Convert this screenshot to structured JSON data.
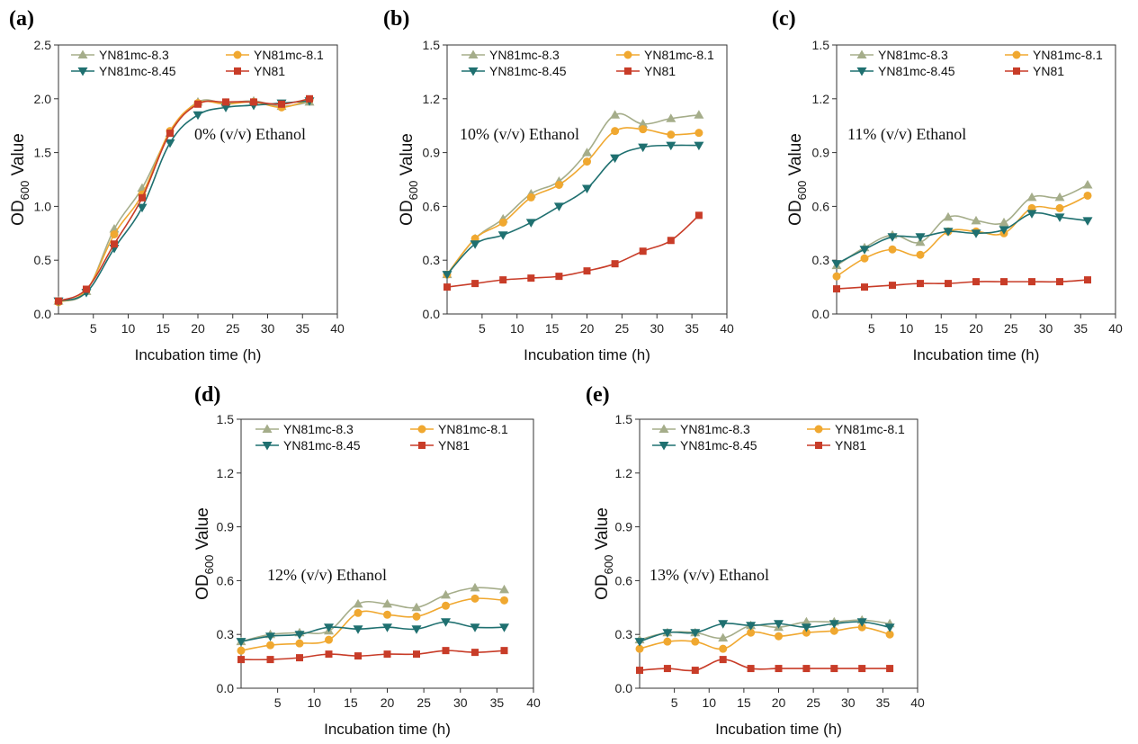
{
  "figure": {
    "colors": {
      "YN81mc-8.3": "#a5ad8a",
      "YN81mc-8.1": "#f0a830",
      "YN81mc-8.45": "#1f7070",
      "YN81": "#c83c28"
    },
    "markers": {
      "YN81mc-8.3": "triangle-up",
      "YN81mc-8.1": "circle",
      "YN81mc-8.45": "triangle-down",
      "YN81": "square"
    }
  },
  "chart_data": [
    {
      "type": "line",
      "panel": "(a)",
      "title": "",
      "annotation": "0% (v/v) Ethanol",
      "xlabel": "Incubation time (h)",
      "ylabel": {
        "main": "OD",
        "sub": "600",
        "rest": " Value"
      },
      "xlim": [
        0,
        40
      ],
      "ylim": [
        0,
        2.5
      ],
      "xticks": [
        5,
        10,
        15,
        20,
        25,
        30,
        35,
        40
      ],
      "yticks": [
        0.0,
        0.5,
        1.0,
        1.5,
        2.0,
        2.5
      ],
      "ytick_labels": [
        "0.0",
        "0.5",
        "1.0",
        "1.5",
        "2.0",
        "2.5"
      ],
      "legend_position": "top-left",
      "x": [
        0,
        4,
        8,
        12,
        16,
        20,
        24,
        28,
        32,
        36
      ],
      "series": [
        {
          "name": "YN81mc-8.3",
          "values": [
            0.12,
            0.21,
            0.79,
            1.17,
            1.68,
            1.97,
            1.96,
            1.98,
            1.93,
            1.97
          ]
        },
        {
          "name": "YN81mc-8.1",
          "values": [
            0.11,
            0.22,
            0.74,
            1.11,
            1.7,
            1.96,
            1.95,
            1.97,
            1.92,
            1.99
          ]
        },
        {
          "name": "YN81mc-8.45",
          "values": [
            0.12,
            0.2,
            0.61,
            0.99,
            1.59,
            1.85,
            1.92,
            1.94,
            1.96,
            1.98
          ]
        },
        {
          "name": "YN81",
          "values": [
            0.12,
            0.23,
            0.65,
            1.08,
            1.68,
            1.95,
            1.97,
            1.97,
            1.95,
            2.0
          ]
        }
      ]
    },
    {
      "type": "line",
      "panel": "(b)",
      "title": "",
      "annotation": "10% (v/v) Ethanol",
      "xlabel": "Incubation time (h)",
      "ylabel": {
        "main": "OD",
        "sub": "600",
        "rest": " Value"
      },
      "xlim": [
        0,
        40
      ],
      "ylim": [
        0,
        1.5
      ],
      "xticks": [
        5,
        10,
        15,
        20,
        25,
        30,
        35,
        40
      ],
      "yticks": [
        0.0,
        0.3,
        0.6,
        0.9,
        1.2,
        1.5
      ],
      "ytick_labels": [
        "0.0",
        "0.3",
        "0.6",
        "0.9",
        "1.2",
        "1.5"
      ],
      "legend_position": "top-left",
      "x": [
        0,
        4,
        8,
        12,
        16,
        20,
        24,
        28,
        32,
        36
      ],
      "series": [
        {
          "name": "YN81mc-8.3",
          "values": [
            0.22,
            0.42,
            0.53,
            0.67,
            0.74,
            0.9,
            1.11,
            1.06,
            1.09,
            1.11
          ]
        },
        {
          "name": "YN81mc-8.1",
          "values": [
            0.22,
            0.42,
            0.51,
            0.65,
            0.72,
            0.85,
            1.02,
            1.03,
            1.0,
            1.01
          ]
        },
        {
          "name": "YN81mc-8.45",
          "values": [
            0.22,
            0.39,
            0.44,
            0.51,
            0.6,
            0.7,
            0.87,
            0.93,
            0.94,
            0.94
          ]
        },
        {
          "name": "YN81",
          "values": [
            0.15,
            0.17,
            0.19,
            0.2,
            0.21,
            0.24,
            0.28,
            0.35,
            0.41,
            0.55
          ]
        }
      ]
    },
    {
      "type": "line",
      "panel": "(c)",
      "title": "",
      "annotation": "11% (v/v) Ethanol",
      "xlabel": "Incubation time (h)",
      "ylabel": {
        "main": "OD",
        "sub": "600",
        "rest": " Value"
      },
      "xlim": [
        0,
        40
      ],
      "ylim": [
        0,
        1.5
      ],
      "xticks": [
        5,
        10,
        15,
        20,
        25,
        30,
        35,
        40
      ],
      "yticks": [
        0.0,
        0.3,
        0.6,
        0.9,
        1.2,
        1.5
      ],
      "ytick_labels": [
        "0.0",
        "0.3",
        "0.6",
        "0.9",
        "1.2",
        "1.5"
      ],
      "legend_position": "top-left",
      "x": [
        0,
        4,
        8,
        12,
        16,
        20,
        24,
        28,
        32,
        36
      ],
      "series": [
        {
          "name": "YN81mc-8.3",
          "values": [
            0.27,
            0.37,
            0.44,
            0.4,
            0.54,
            0.52,
            0.51,
            0.65,
            0.65,
            0.72
          ]
        },
        {
          "name": "YN81mc-8.1",
          "values": [
            0.21,
            0.31,
            0.36,
            0.33,
            0.46,
            0.46,
            0.45,
            0.59,
            0.59,
            0.66
          ]
        },
        {
          "name": "YN81mc-8.45",
          "values": [
            0.28,
            0.36,
            0.43,
            0.43,
            0.46,
            0.45,
            0.47,
            0.56,
            0.54,
            0.52
          ]
        },
        {
          "name": "YN81",
          "values": [
            0.14,
            0.15,
            0.16,
            0.17,
            0.17,
            0.18,
            0.18,
            0.18,
            0.18,
            0.19
          ]
        }
      ]
    },
    {
      "type": "line",
      "panel": "(d)",
      "title": "",
      "annotation": "12% (v/v) Ethanol",
      "xlabel": "Incubation time (h)",
      "ylabel": {
        "main": "OD",
        "sub": "600",
        "rest": " Value"
      },
      "xlim": [
        0,
        40
      ],
      "ylim": [
        0,
        1.5
      ],
      "xticks": [
        5,
        10,
        15,
        20,
        25,
        30,
        35,
        40
      ],
      "yticks": [
        0.0,
        0.3,
        0.6,
        0.9,
        1.2,
        1.5
      ],
      "ytick_labels": [
        "0.0",
        "0.3",
        "0.6",
        "0.9",
        "1.2",
        "1.5"
      ],
      "legend_position": "top-left",
      "x": [
        0,
        4,
        8,
        12,
        16,
        20,
        24,
        28,
        32,
        36
      ],
      "series": [
        {
          "name": "YN81mc-8.3",
          "values": [
            0.26,
            0.3,
            0.31,
            0.32,
            0.47,
            0.47,
            0.45,
            0.52,
            0.56,
            0.55
          ]
        },
        {
          "name": "YN81mc-8.1",
          "values": [
            0.21,
            0.24,
            0.25,
            0.27,
            0.42,
            0.41,
            0.4,
            0.46,
            0.5,
            0.49
          ]
        },
        {
          "name": "YN81mc-8.45",
          "values": [
            0.26,
            0.29,
            0.3,
            0.34,
            0.33,
            0.34,
            0.33,
            0.37,
            0.34,
            0.34
          ]
        },
        {
          "name": "YN81",
          "values": [
            0.16,
            0.16,
            0.17,
            0.19,
            0.18,
            0.19,
            0.19,
            0.21,
            0.2,
            0.21
          ]
        }
      ]
    },
    {
      "type": "line",
      "panel": "(e)",
      "title": "",
      "annotation": "13% (v/v) Ethanol",
      "xlabel": "Incubation time (h)",
      "ylabel": {
        "main": "OD",
        "sub": "600",
        "rest": " Value"
      },
      "xlim": [
        0,
        40
      ],
      "ylim": [
        0,
        1.5
      ],
      "xticks": [
        5,
        10,
        15,
        20,
        25,
        30,
        35,
        40
      ],
      "yticks": [
        0.0,
        0.3,
        0.6,
        0.9,
        1.2,
        1.5
      ],
      "ytick_labels": [
        "0.0",
        "0.3",
        "0.6",
        "0.9",
        "1.2",
        "1.5"
      ],
      "legend_position": "top-left",
      "x": [
        0,
        4,
        8,
        12,
        16,
        20,
        24,
        28,
        32,
        36
      ],
      "series": [
        {
          "name": "YN81mc-8.3",
          "values": [
            0.27,
            0.31,
            0.31,
            0.28,
            0.35,
            0.34,
            0.37,
            0.37,
            0.38,
            0.36
          ]
        },
        {
          "name": "YN81mc-8.1",
          "values": [
            0.22,
            0.26,
            0.26,
            0.22,
            0.31,
            0.29,
            0.31,
            0.32,
            0.34,
            0.3
          ]
        },
        {
          "name": "YN81mc-8.45",
          "values": [
            0.26,
            0.31,
            0.31,
            0.36,
            0.35,
            0.36,
            0.34,
            0.36,
            0.37,
            0.34
          ]
        },
        {
          "name": "YN81",
          "values": [
            0.1,
            0.11,
            0.1,
            0.16,
            0.11,
            0.11,
            0.11,
            0.11,
            0.11,
            0.11
          ]
        }
      ]
    }
  ]
}
